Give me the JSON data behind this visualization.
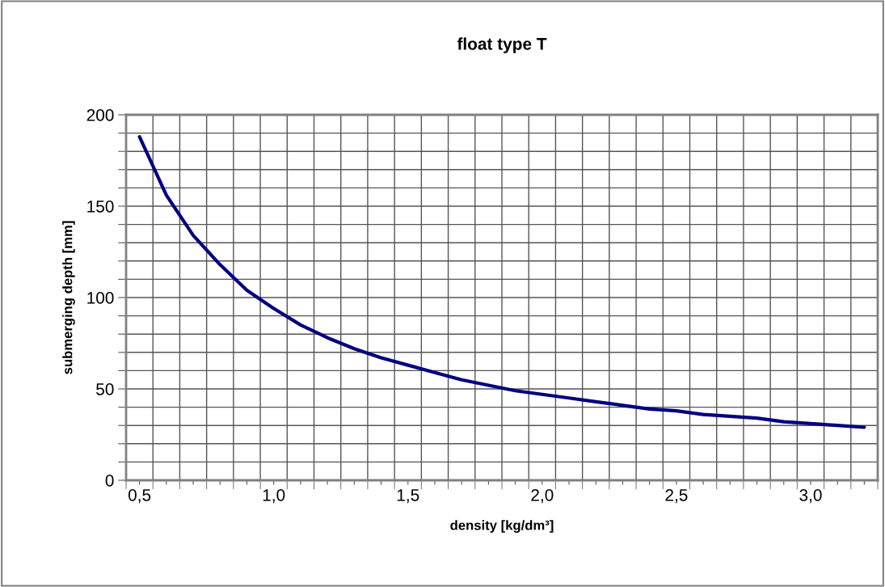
{
  "chart_data": {
    "type": "line",
    "title": "float type T",
    "xlabel": "density [kg/dm³]",
    "ylabel": "submerging depth [mm]",
    "categories": [
      "0,5",
      null,
      null,
      null,
      null,
      "1,0",
      null,
      null,
      null,
      null,
      "1,5",
      null,
      null,
      null,
      null,
      "2,0",
      null,
      null,
      null,
      null,
      "2,5",
      null,
      null,
      null,
      null,
      "3,0",
      null,
      null
    ],
    "series": [
      {
        "color": "#000080",
        "values": [
          188,
          156,
          134,
          118,
          104,
          94,
          85,
          78,
          72,
          67,
          63,
          59,
          55,
          52,
          49,
          47,
          45,
          43,
          41,
          39,
          38,
          36,
          35,
          34,
          32,
          31,
          30,
          29
        ]
      }
    ],
    "ylim": [
      0,
      200
    ],
    "yticks": [
      0,
      {
        "value": 10,
        "label": null
      },
      {
        "value": 20,
        "label": null
      },
      {
        "value": 30,
        "label": null
      },
      {
        "value": 40,
        "label": null
      },
      50,
      {
        "value": 60,
        "label": null
      },
      {
        "value": 70,
        "label": null
      },
      {
        "value": 80,
        "label": null
      },
      {
        "value": 90,
        "label": null
      },
      100,
      {
        "value": 110,
        "label": null
      },
      {
        "value": 120,
        "label": null
      },
      {
        "value": 130,
        "label": null
      },
      {
        "value": 140,
        "label": null
      },
      150,
      {
        "value": 160,
        "label": null
      },
      {
        "value": 170,
        "label": null
      },
      {
        "value": 180,
        "label": null
      },
      {
        "value": 190,
        "label": null
      },
      200
    ],
    "grid": true,
    "marker": "none",
    "line_style": "solid"
  }
}
